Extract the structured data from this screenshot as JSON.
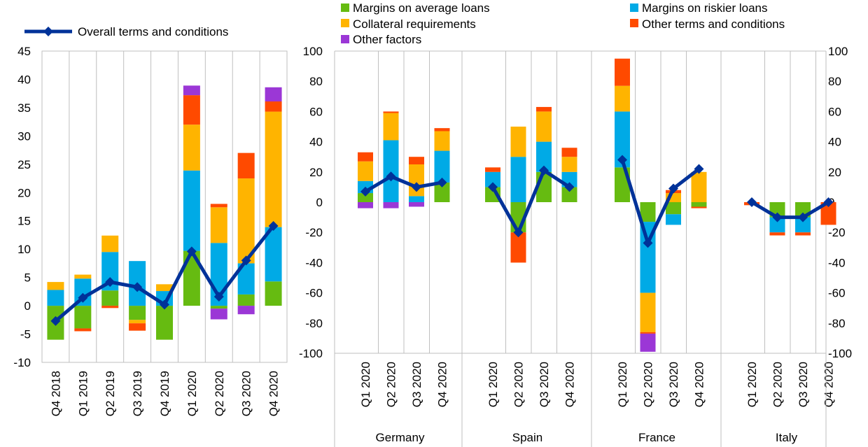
{
  "colors": {
    "avg_loans": "#66BB11",
    "riskier_loans": "#00AAE6",
    "collateral": "#FFB400",
    "other_terms": "#FF4A00",
    "other_factors": "#9B37D6",
    "overall": "#003299"
  },
  "legend": {
    "overall": "Overall terms and conditions",
    "avg_loans": "Margins on average loans",
    "riskier_loans": "Margins on riskier loans",
    "collateral": "Collateral requirements",
    "other_terms": "Other terms and conditions",
    "other_factors": "Other factors"
  },
  "chart_data": [
    {
      "type": "bar",
      "stacked": true,
      "name": "euro-area",
      "categories": [
        "Q4 2018",
        "Q1 2019",
        "Q2 2019",
        "Q3 2019",
        "Q4 2019",
        "Q1 2020",
        "Q2 2020",
        "Q3 2020",
        "Q4 2020"
      ],
      "ylim": [
        -10,
        45
      ],
      "yticks": [
        -10,
        -5,
        0,
        5,
        10,
        15,
        20,
        25,
        30,
        35,
        40,
        45
      ],
      "series": [
        {
          "name": "Margins on average loans",
          "key": "avg_loans",
          "values": [
            -6,
            -4,
            2.7,
            -2.5,
            -6,
            9.7,
            -0.5,
            2,
            4.3
          ]
        },
        {
          "name": "Margins on riskier loans",
          "key": "riskier_loans",
          "values": [
            2.8,
            4.8,
            6.8,
            7.9,
            2.6,
            14.2,
            11.1,
            5.5,
            9.6
          ]
        },
        {
          "name": "Collateral requirements",
          "key": "collateral",
          "values": [
            1.4,
            0.7,
            2.9,
            -0.6,
            1.2,
            8.1,
            6.3,
            15,
            20.4
          ]
        },
        {
          "name": "Other terms and conditions",
          "key": "other_terms",
          "values": [
            0,
            -0.5,
            -0.4,
            -1.3,
            0,
            5.2,
            0.6,
            4.5,
            1.8
          ]
        },
        {
          "name": "Other factors",
          "key": "other_factors",
          "values": [
            0,
            0,
            0,
            0,
            0,
            1.7,
            -1.9,
            -1.5,
            2.5
          ]
        }
      ],
      "line": {
        "name": "Overall terms and conditions",
        "key": "overall",
        "values": [
          -2.7,
          1.4,
          4.2,
          3.3,
          0.2,
          9.6,
          1.6,
          8,
          14.1
        ]
      }
    },
    {
      "type": "bar",
      "stacked": true,
      "name": "countries",
      "groups": [
        "Germany",
        "Spain",
        "France",
        "Italy"
      ],
      "categories": [
        "Q1 2020",
        "Q2 2020",
        "Q3 2020",
        "Q4 2020"
      ],
      "ylim": [
        -100,
        100
      ],
      "yticks": [
        -100,
        -80,
        -60,
        -40,
        -20,
        0,
        20,
        40,
        60,
        80,
        100
      ],
      "data": {
        "Germany": {
          "avg_loans": [
            6,
            0,
            0,
            13
          ],
          "riskier_loans": [
            8,
            41,
            4,
            21
          ],
          "collateral": [
            13,
            18,
            21,
            13
          ],
          "other_terms": [
            6,
            1,
            5,
            2
          ],
          "other_factors": [
            -4,
            -4,
            -3,
            0
          ],
          "overall": [
            7,
            17,
            10,
            13
          ]
        },
        "Spain": {
          "avg_loans": [
            10,
            -20,
            20,
            10
          ],
          "riskier_loans": [
            10,
            30,
            20,
            10
          ],
          "collateral": [
            0,
            20,
            20,
            10
          ],
          "other_terms": [
            3,
            -20,
            3,
            6
          ],
          "other_factors": [
            0,
            0,
            0,
            0
          ],
          "overall": [
            10,
            -20,
            21,
            10
          ]
        },
        "France": {
          "avg_loans": [
            23,
            -13,
            -8,
            -3
          ],
          "riskier_loans": [
            37,
            -47,
            -7,
            0
          ],
          "collateral": [
            17,
            -26,
            6,
            20
          ],
          "other_terms": [
            18,
            -1,
            2,
            -1
          ],
          "other_factors": [
            0,
            -12,
            0,
            0
          ],
          "overall": [
            28,
            -27,
            9,
            22
          ]
        },
        "Italy": {
          "avg_loans": [
            0,
            -10,
            -10,
            0
          ],
          "riskier_loans": [
            0,
            -10,
            -10,
            0
          ],
          "collateral": [
            0,
            0,
            0,
            0
          ],
          "other_terms": [
            -2,
            -2,
            -2,
            -15
          ],
          "other_factors": [
            0,
            0,
            0,
            0
          ],
          "overall": [
            0,
            -10,
            -10,
            0
          ]
        }
      }
    }
  ]
}
